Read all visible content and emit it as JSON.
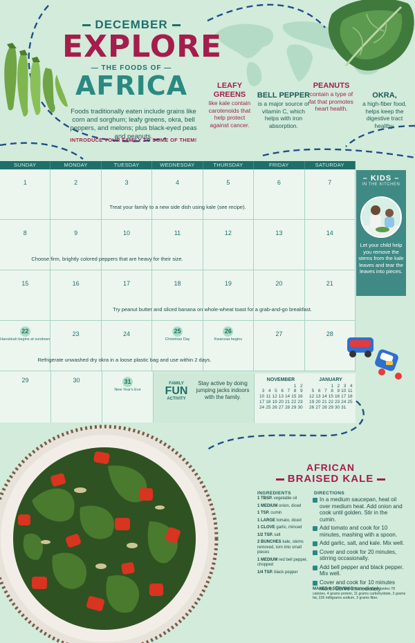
{
  "header": {
    "month": "DECEMBER",
    "explore": "EXPLORE",
    "foods_of": "THE FOODS OF",
    "region": "AFRICA",
    "intro": "Foods traditionally eaten include grains like corn and sorghum; leafy greens, okra, bell peppers, and melons; plus black-eyed peas and peanuts.",
    "cta": "INTRODUCE YOUR FAMILY TO SOME OF THEM!"
  },
  "facts": [
    {
      "title": "LEAFY GREENS",
      "text": "like kale contain carotenoids that help protect against cancer."
    },
    {
      "title": "BELL PEPPER",
      "text": "is a major source of vitamin C, which helps with iron absorption."
    },
    {
      "title": "PEANUTS",
      "text": "contain a type of fat that promotes heart health."
    },
    {
      "title": "OKRA,",
      "text": "a high-fiber food, helps keep the digestive tract healthy."
    }
  ],
  "calendar": {
    "days": [
      "SUNDAY",
      "MONDAY",
      "TUESDAY",
      "WEDNESDAY",
      "THURSDAY",
      "FRIDAY",
      "SATURDAY"
    ],
    "weeks": [
      {
        "dates": [
          "1",
          "2",
          "3",
          "4",
          "5",
          "6",
          "7"
        ],
        "tip": "Treat your family to a new side dish using kale (see recipe)."
      },
      {
        "dates": [
          "8",
          "9",
          "10",
          "11",
          "12",
          "13",
          "14"
        ],
        "tip": "Choose firm, brightly colored peppers that are heavy for their size."
      },
      {
        "dates": [
          "15",
          "16",
          "17",
          "18",
          "19",
          "20",
          "21"
        ],
        "tip": "Try peanut butter and sliced banana on whole-wheat toast for a grab-and-go breakfast."
      },
      {
        "dates": [
          "22",
          "23",
          "24",
          "25",
          "26",
          "27",
          "28"
        ],
        "tip": "Refrigerate unwashed dry okra in a loose plastic bag and use within 2 days."
      },
      {
        "dates": [
          "29",
          "30",
          "31"
        ],
        "tip": ""
      }
    ],
    "holidays": {
      "hanukkah": "Hanukkah begins at sundown",
      "christmas": "Christmas Day",
      "kwanzaa": "Kwanzaa begins",
      "nye": "New Year's Eve"
    }
  },
  "family_fun": {
    "label_top": "FAMILY",
    "label_mid": "FUN",
    "label_bot": "ACTIVITY",
    "text": "Stay active by doing jumping jacks indoors with the family."
  },
  "mini_calendars": [
    {
      "month": "NOVEMBER",
      "rows": [
        [
          "",
          "",
          "",
          "",
          "",
          "1",
          "2"
        ],
        [
          "3",
          "4",
          "5",
          "6",
          "7",
          "8",
          "9"
        ],
        [
          "10",
          "11",
          "12",
          "13",
          "14",
          "15",
          "16"
        ],
        [
          "17",
          "18",
          "19",
          "20",
          "21",
          "22",
          "23"
        ],
        [
          "24",
          "25",
          "26",
          "27",
          "28",
          "29",
          "30"
        ]
      ]
    },
    {
      "month": "JANUARY",
      "rows": [
        [
          "",
          "",
          "",
          "1",
          "2",
          "3",
          "4"
        ],
        [
          "5",
          "6",
          "7",
          "8",
          "9",
          "10",
          "11"
        ],
        [
          "12",
          "13",
          "14",
          "15",
          "16",
          "17",
          "18"
        ],
        [
          "19",
          "20",
          "21",
          "22",
          "23",
          "24",
          "25"
        ],
        [
          "26",
          "27",
          "28",
          "29",
          "30",
          "31",
          ""
        ]
      ]
    }
  ],
  "kids": {
    "title": "KIDS",
    "subtitle": "IN THE KITCHEN",
    "text": "Let your child help you remove the stems from the kale leaves and tear the leaves into pieces."
  },
  "recipe": {
    "title_top": "AFRICAN",
    "title_bottom": "BRAISED KALE",
    "ingredients_header": "INGREDIENTS",
    "directions_header": "DIRECTIONS",
    "ingredients": [
      {
        "qty": "1 TBSP.",
        "item": "vegetable oil"
      },
      {
        "qty": "1 MEDIUM",
        "item": "onion, diced"
      },
      {
        "qty": "1 TSP.",
        "item": "cumin"
      },
      {
        "qty": "1 LARGE",
        "item": "tomato, diced"
      },
      {
        "qty": "1 CLOVE",
        "item": "garlic, minced"
      },
      {
        "qty": "1/2 TSP.",
        "item": "salt"
      },
      {
        "qty": "2 BUNCHES",
        "item": "kale, stems removed, torn into small pieces"
      },
      {
        "qty": "1 MEDIUM",
        "item": "red bell pepper, chopped"
      },
      {
        "qty": "1/4 TSP.",
        "item": "black pepper"
      }
    ],
    "directions": [
      "In a medium saucepan, heat oil over medium heat. Add onion and cook until golden. Stir in the cumin.",
      "Add tomato and cook for 10 minutes, mashing with a spoon.",
      "Add garlic, salt, and kale. Mix well.",
      "Cover and cook for 20 minutes, stirring occasionally.",
      "Add bell pepper and black pepper. Mix well.",
      "Cover and cook for 10 minutes more. Serve immediately."
    ],
    "servings_label": "MAKES 6 SERVINGS",
    "servings_text": "Each serving provides 78 calories, 4 grams protein, 11 grams carbohydrate, 3 grams fat, 226 milligrams sodium, 3 grams fiber."
  },
  "colors": {
    "teal": "#1f6f6a",
    "magenta": "#a51d4c",
    "mint": "#d2ebdb"
  }
}
